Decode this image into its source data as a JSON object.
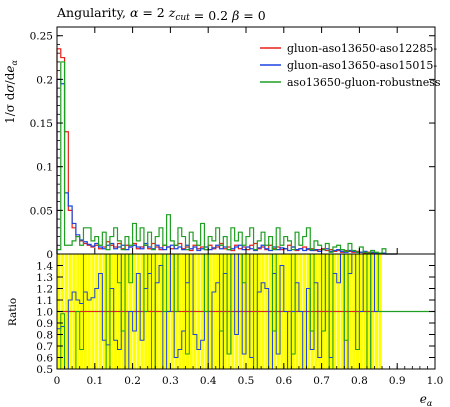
{
  "chart_data": {
    "type": "histogram",
    "title": "Angularity, α = 2 z_cut = 0.2 β = 0",
    "ylabel": "1/σ dσ/de_α",
    "xlabel": "e_α",
    "ratio_ylabel": "Ratio",
    "xlim": [
      0,
      1.0
    ],
    "ylim": [
      0,
      0.26
    ],
    "ratio_ylim": [
      0.5,
      1.5
    ],
    "x_ticks": [
      "0",
      "0.1",
      "0.2",
      "0.3",
      "0.4",
      "0.5",
      "0.6",
      "0.7",
      "0.8",
      "0.9",
      "1.0"
    ],
    "y_ticks": [
      "0",
      "0.05",
      "0.1",
      "0.15",
      "0.2",
      "0.25"
    ],
    "ratio_ticks": [
      "0.5",
      "0.6",
      "0.7",
      "0.8",
      "0.9",
      "1.0",
      "1.1",
      "1.2",
      "1.3",
      "1.4"
    ],
    "legend_position": "top-right",
    "bin_edges": [
      0,
      0.01,
      0.02,
      0.03,
      0.04,
      0.05,
      0.06,
      0.07,
      0.08,
      0.09,
      0.1,
      0.11,
      0.12,
      0.13,
      0.14,
      0.15,
      0.16,
      0.17,
      0.18,
      0.19,
      0.2,
      0.21,
      0.22,
      0.23,
      0.24,
      0.25,
      0.26,
      0.27,
      0.28,
      0.29,
      0.3,
      0.31,
      0.32,
      0.33,
      0.34,
      0.35,
      0.36,
      0.37,
      0.38,
      0.39,
      0.4,
      0.41,
      0.42,
      0.43,
      0.44,
      0.45,
      0.46,
      0.47,
      0.48,
      0.49,
      0.5,
      0.51,
      0.52,
      0.53,
      0.54,
      0.55,
      0.56,
      0.57,
      0.58,
      0.59,
      0.6,
      0.61,
      0.62,
      0.63,
      0.64,
      0.65,
      0.66,
      0.67,
      0.68,
      0.69,
      0.7,
      0.71,
      0.72,
      0.73,
      0.74,
      0.75,
      0.76,
      0.77,
      0.78,
      0.79,
      0.8,
      0.81,
      0.82,
      0.83,
      0.84,
      0.85,
      0.86,
      0.87,
      0.88,
      0.89,
      0.9
    ],
    "series": [
      {
        "name": "gluon-aso13650-aso12285-",
        "color": "#e8211a",
        "values": [
          0.235,
          0.225,
          0.14,
          0.05,
          0.03,
          0.02,
          0.015,
          0.012,
          0.01,
          0.008,
          0.01,
          0.006,
          0.008,
          0.014,
          0.01,
          0.008,
          0.012,
          0.006,
          0.01,
          0.008,
          0.012,
          0.006,
          0.008,
          0.01,
          0.006,
          0.012,
          0.008,
          0.005,
          0.01,
          0.008,
          0.006,
          0.01,
          0.012,
          0.006,
          0.008,
          0.004,
          0.01,
          0.006,
          0.008,
          0.005,
          0.01,
          0.006,
          0.008,
          0.012,
          0.006,
          0.008,
          0.004,
          0.01,
          0.006,
          0.008,
          0.005,
          0.01,
          0.012,
          0.006,
          0.008,
          0.005,
          0.01,
          0.006,
          0.008,
          0.005,
          0.006,
          0.01,
          0.008,
          0.004,
          0.006,
          0.008,
          0.005,
          0.006,
          0.004,
          0.005,
          0.006,
          0.004,
          0.005,
          0.003,
          0.004,
          0.002,
          0.004,
          0.003,
          0.002,
          0.003,
          0.002,
          0.001,
          0.002,
          0.001,
          0.001,
          0.001,
          0.0,
          0.0,
          0.0,
          0.0
        ]
      },
      {
        "name": "gluon-aso13650-aso15015-",
        "color": "#1c45e0",
        "values": [
          0.2,
          0.195,
          0.07,
          0.055,
          0.035,
          0.022,
          0.016,
          0.014,
          0.011,
          0.009,
          0.012,
          0.008,
          0.006,
          0.01,
          0.012,
          0.006,
          0.008,
          0.01,
          0.005,
          0.008,
          0.01,
          0.008,
          0.006,
          0.012,
          0.008,
          0.006,
          0.01,
          0.007,
          0.005,
          0.008,
          0.01,
          0.006,
          0.008,
          0.005,
          0.01,
          0.006,
          0.008,
          0.004,
          0.006,
          0.008,
          0.005,
          0.007,
          0.01,
          0.006,
          0.008,
          0.005,
          0.006,
          0.008,
          0.01,
          0.005,
          0.008,
          0.006,
          0.004,
          0.007,
          0.01,
          0.006,
          0.004,
          0.008,
          0.005,
          0.007,
          0.006,
          0.004,
          0.008,
          0.005,
          0.006,
          0.004,
          0.006,
          0.004,
          0.005,
          0.003,
          0.005,
          0.006,
          0.003,
          0.004,
          0.005,
          0.003,
          0.002,
          0.004,
          0.003,
          0.002,
          0.002,
          0.003,
          0.001,
          0.002,
          0.001,
          0.001,
          0.001,
          0.0,
          0.0,
          0.0
        ]
      },
      {
        "name": "aso13650-gluon-robustness",
        "color": "#1e9e22",
        "values": [
          0.005,
          0.22,
          0.01,
          0.01,
          0.015,
          0.02,
          0.01,
          0.03,
          0.03,
          0.015,
          0.02,
          0.01,
          0.025,
          0.005,
          0.02,
          0.03,
          0.015,
          0.005,
          0.02,
          0.01,
          0.035,
          0.015,
          0.03,
          0.01,
          0.025,
          0.005,
          0.02,
          0.03,
          0.01,
          0.045,
          0.015,
          0.01,
          0.03,
          0.02,
          0.005,
          0.025,
          0.015,
          0.01,
          0.035,
          0.005,
          0.02,
          0.015,
          0.03,
          0.01,
          0.02,
          0.005,
          0.03,
          0.015,
          0.025,
          0.01,
          0.02,
          0.03,
          0.005,
          0.015,
          0.025,
          0.01,
          0.02,
          0.005,
          0.03,
          0.01,
          0.02,
          0.015,
          0.005,
          0.025,
          0.01,
          0.02,
          0.03,
          0.005,
          0.015,
          0.01,
          0.005,
          0.012,
          0.002,
          0.008,
          0.01,
          0.005,
          0.003,
          0.012,
          0.004,
          0.002,
          0.008,
          0.002,
          0.001,
          0.004,
          0.002,
          0.001,
          0.006,
          0.0,
          0.0,
          0.0
        ]
      }
    ],
    "ratio": {
      "reference_line": 1.0,
      "band_color": "#ffff00",
      "series": [
        {
          "name": "gluon-aso13650-aso12285-",
          "color": "#e8211a",
          "values": [
            1.0,
            1.0,
            1.0,
            1.0,
            1.0,
            1.0,
            1.0,
            1.0,
            1.0,
            1.0,
            1.0,
            1.0,
            1.0,
            1.0,
            1.0,
            1.0,
            1.0,
            1.0,
            1.0,
            1.0,
            1.0,
            1.0,
            1.0,
            1.0,
            1.0,
            1.0,
            1.0,
            1.0,
            1.0,
            1.0,
            1.0,
            1.0,
            1.0,
            1.0,
            1.0,
            1.0,
            1.0,
            1.0,
            1.0,
            1.0,
            1.0,
            1.0,
            1.0,
            1.0,
            1.0,
            1.0,
            1.0,
            1.0,
            1.0,
            1.0,
            1.0,
            1.0,
            1.0,
            1.0,
            1.0,
            1.0,
            1.0,
            1.0,
            1.0,
            1.0,
            1.0,
            1.0,
            1.0,
            1.0,
            1.0,
            1.0,
            1.0,
            1.0,
            1.0,
            1.0,
            1.0,
            1.0,
            1.0,
            1.0,
            1.0,
            1.0,
            1.0,
            1.0,
            1.0,
            1.0,
            1.0,
            1.0,
            1.0,
            1.0,
            1.0,
            1.0,
            1.0,
            1.0,
            1.0,
            1.0
          ]
        },
        {
          "name": "gluon-aso13650-aso15015-",
          "color": "#1c45e0",
          "values": [
            0.85,
            0.87,
            0.5,
            1.1,
            1.17,
            1.1,
            1.07,
            1.17,
            1.1,
            1.12,
            1.2,
            1.33,
            0.75,
            0.71,
            1.2,
            0.75,
            0.67,
            1.67,
            0.5,
            1.0,
            0.83,
            1.33,
            0.75,
            1.2,
            1.33,
            0.5,
            1.25,
            1.4,
            0.5,
            1.0,
            1.67,
            0.6,
            0.67,
            0.83,
            1.25,
            1.5,
            0.8,
            0.67,
            0.75,
            1.6,
            0.5,
            1.17,
            1.25,
            0.5,
            1.33,
            0.63,
            1.5,
            0.8,
            1.67,
            0.63,
            1.6,
            0.6,
            0.5,
            1.17,
            1.25,
            1.2,
            0.5,
            1.33,
            0.63,
            1.4,
            1.0,
            0.5,
            1.0,
            1.25,
            1.0,
            0.5,
            1.2,
            0.67,
            1.25,
            0.6,
            0.83,
            1.5,
            0.6,
            1.33,
            1.25,
            1.5,
            0.5,
            1.33,
            1.5,
            0.67,
            1.0,
            3.0,
            0.5,
            2.0,
            1.0,
            1.0,
            1.0,
            1.0,
            1.0,
            1.0
          ]
        },
        {
          "name": "aso13650-gluon-robustness",
          "color": "#1e9e22",
          "values": [
            0.5,
            0.98,
            0.5,
            0.5,
            0.5,
            1.0,
            0.67,
            2.5,
            3.0,
            1.88,
            2.0,
            1.67,
            3.13,
            0.36,
            2.0,
            3.75,
            1.25,
            0.83,
            2.0,
            1.25,
            2.92,
            2.5,
            3.75,
            1.0,
            4.17,
            0.42,
            2.5,
            6.0,
            1.0,
            5.63,
            2.5,
            1.0,
            2.5,
            3.33,
            0.63,
            6.25,
            1.5,
            1.67,
            4.38,
            1.0,
            2.0,
            2.5,
            3.75,
            0.83,
            3.33,
            0.63,
            7.5,
            1.5,
            4.17,
            1.25,
            4.0,
            3.0,
            0.42,
            2.5,
            3.13,
            2.0,
            2.0,
            0.83,
            3.75,
            2.0,
            3.33,
            1.5,
            0.63,
            6.25,
            1.67,
            2.5,
            6.0,
            0.83,
            3.75,
            2.0,
            0.83,
            3.0,
            0.4,
            2.67,
            2.5,
            2.5,
            0.75,
            4.0,
            2.0,
            0.67,
            4.0,
            2.0,
            0.5,
            4.0,
            2.0,
            1.0,
            1.0,
            1.0,
            1.0,
            1.0
          ]
        }
      ]
    }
  }
}
